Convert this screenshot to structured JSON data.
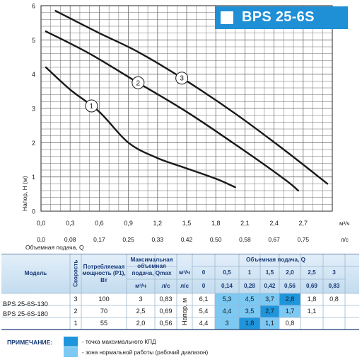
{
  "title": "BPS 25-6S",
  "chart_data": {
    "type": "line",
    "xlabel": "Объемная подача, Q",
    "ylabel": "Напор, Н (м)",
    "x_unit_top": "м³/ч",
    "x_unit_bottom": "л/с",
    "xlim": [
      0,
      3.0
    ],
    "ylim": [
      0,
      6
    ],
    "x_ticks_m3h": [
      "0,0",
      "0,3",
      "0,6",
      "0,9",
      "1,2",
      "1,5",
      "1,8",
      "2,1",
      "2,4",
      "2,7"
    ],
    "x_ticks_ls": [
      "0,0",
      "0,08",
      "0,17",
      "0,25",
      "0,33",
      "0,42",
      "0,50",
      "0,58",
      "0,67",
      "0,75"
    ],
    "y_ticks": [
      "0",
      "1",
      "2",
      "3",
      "4",
      "5",
      "6"
    ],
    "grid": true,
    "series": [
      {
        "name": "1",
        "x": [
          0.05,
          0.3,
          0.6,
          0.9,
          1.2,
          1.5,
          1.8,
          2.0
        ],
        "y": [
          4.2,
          3.55,
          2.9,
          2.0,
          1.55,
          1.25,
          0.95,
          0.7
        ]
      },
      {
        "name": "2",
        "x": [
          0.05,
          0.5,
          1.0,
          1.5,
          2.0,
          2.5,
          2.65
        ],
        "y": [
          5.25,
          4.6,
          3.75,
          2.9,
          1.95,
          0.95,
          0.6
        ]
      },
      {
        "name": "3",
        "x": [
          0.15,
          0.6,
          1.0,
          1.5,
          2.0,
          2.5,
          2.95
        ],
        "y": [
          5.85,
          5.2,
          4.65,
          3.8,
          2.85,
          1.8,
          0.8
        ]
      }
    ],
    "curve_labels": [
      {
        "text": "1",
        "series": 0,
        "x": 0.52
      },
      {
        "text": "2",
        "series": 1,
        "x": 1.0
      },
      {
        "text": "3",
        "series": 2,
        "x": 1.45
      }
    ]
  },
  "table": {
    "headers": {
      "model": "Модель",
      "speed": "Скорость",
      "power": "Потребляемая мощность (P1), Вт",
      "qmax": "Максимальная объемная подача, Qmax",
      "qmax_m3h": "м³/ч",
      "qmax_ls": "л/с",
      "flow": "Объемная подача, Q",
      "flow_m3h_unit": "м³/ч",
      "flow_ls_unit": "л/с",
      "head": "Напор, м"
    },
    "flow_m3h": [
      "0",
      "0,5",
      "1",
      "1,5",
      "2,0",
      "2,5",
      "3"
    ],
    "flow_ls": [
      "0",
      "0,14",
      "0,28",
      "0,42",
      "0,56",
      "0,69",
      "0,83"
    ],
    "models": [
      "BPS 25-6S-130",
      "BPS 25-6S-180"
    ],
    "rows": [
      {
        "speed": "3",
        "power": "100",
        "qmax_m3h": "3",
        "qmax_ls": "0,83",
        "heads": [
          "6,1",
          "5,3",
          "4,5",
          "3,7",
          "2,8",
          "1,8",
          "0,8"
        ],
        "shade": [
          "",
          "l",
          "l",
          "l",
          "d",
          "",
          ""
        ]
      },
      {
        "speed": "2",
        "power": "70",
        "qmax_m3h": "2,5",
        "qmax_ls": "0,69",
        "heads": [
          "5,4",
          "4,4",
          "3,5",
          "2,7",
          "1,7",
          "1,1",
          ""
        ],
        "shade": [
          "",
          "l",
          "l",
          "d",
          "l",
          "",
          ""
        ]
      },
      {
        "speed": "1",
        "power": "55",
        "qmax_m3h": "2,0",
        "qmax_ls": "0,56",
        "heads": [
          "4,4",
          "3",
          "1,8",
          "1,1",
          "0,8",
          "",
          ""
        ],
        "shade": [
          "",
          "l",
          "d",
          "l",
          "",
          "",
          ""
        ]
      }
    ]
  },
  "notes": {
    "title": "ПРИМЕЧАНИЕ:",
    "max_eff": "- точка максимального КПД",
    "normal_zone": "- зона нормальной работы (рабочий диапазон)"
  },
  "colors": {
    "curve": "#1a1a1a",
    "grid": "#6d6d6d",
    "badge": "#1f8fd6",
    "header_band": "#cfe4f4",
    "dark_cell": "#1f95dc",
    "light_cell": "#7cc9f3"
  }
}
